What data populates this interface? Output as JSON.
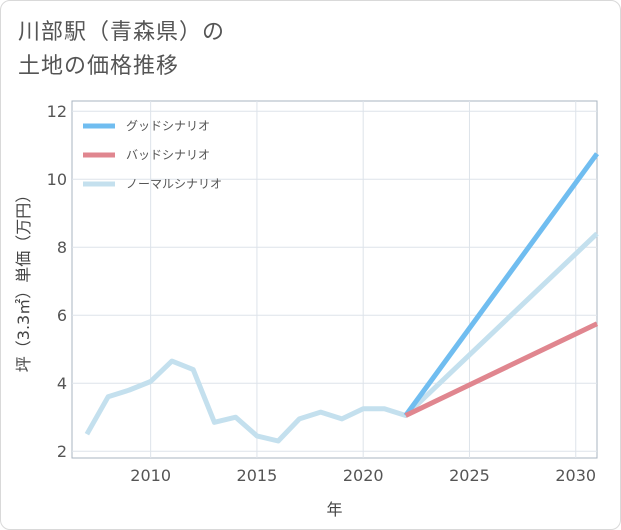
{
  "title": "川部駅（青森県）の\n土地の価格推移",
  "chart_data": {
    "type": "line",
    "xlabel": "年",
    "ylabel": "坪（3.3㎡）単価（万円）",
    "xlim": [
      2006.3,
      2031
    ],
    "ylim": [
      1.8,
      12.3
    ],
    "xticks": [
      2010,
      2015,
      2020,
      2025,
      2030
    ],
    "yticks": [
      2,
      4,
      6,
      8,
      10,
      12
    ],
    "grid": true,
    "legend_position": "top-left",
    "series": [
      {
        "name": "ノーマルシナリオ",
        "color": "#c4e0ee",
        "x": [
          2007,
          2008,
          2009,
          2010,
          2011,
          2012,
          2013,
          2014,
          2015,
          2016,
          2017,
          2018,
          2019,
          2020,
          2021,
          2022,
          2031
        ],
        "values": [
          2.5,
          3.6,
          3.8,
          4.05,
          4.65,
          4.4,
          2.85,
          3.0,
          2.45,
          2.3,
          2.95,
          3.15,
          2.95,
          3.25,
          3.25,
          3.05,
          8.4
        ]
      },
      {
        "name": "グッドシナリオ",
        "color": "#70bdf0",
        "x": [
          2022,
          2031
        ],
        "values": [
          3.05,
          10.75
        ]
      },
      {
        "name": "バッドシナリオ",
        "color": "#e0868f",
        "x": [
          2022,
          2031
        ],
        "values": [
          3.05,
          5.75
        ]
      }
    ],
    "legend": [
      {
        "name": "グッドシナリオ",
        "color": "#70bdf0"
      },
      {
        "name": "バッドシナリオ",
        "color": "#e0868f"
      },
      {
        "name": "ノーマルシナリオ",
        "color": "#c4e0ee"
      }
    ]
  }
}
